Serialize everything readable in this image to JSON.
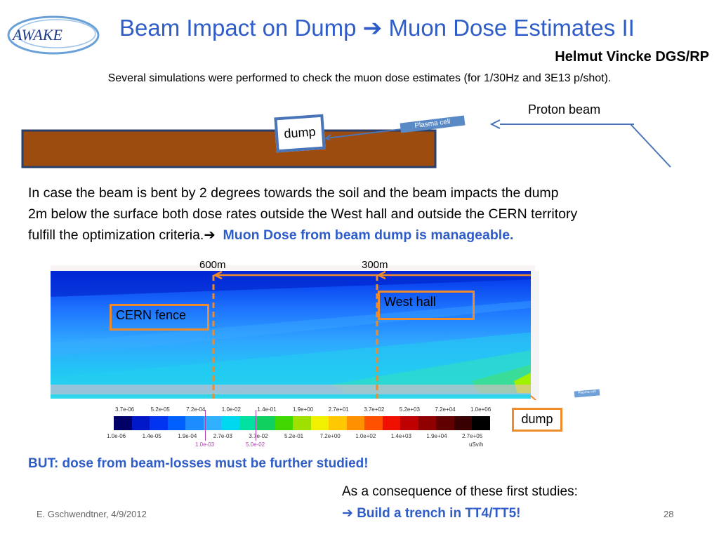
{
  "logo_text": "AWAKE",
  "title": {
    "part1": "Beam Impact on Dump ",
    "arrow": "➔",
    "part2": " Muon Dose Estimates II"
  },
  "author": "Helmut Vincke DGS/RP",
  "intro": "Several simulations were performed to check the muon dose estimates (for 1/30Hz and 3E13 p/shot).",
  "diagram": {
    "proton_beam": "Proton beam",
    "dump": "dump",
    "plasma_cell": "Plasma cell",
    "colors": {
      "soil": "#9b4c0e",
      "box_border": "#4a74b8",
      "beam": "#4a74b8"
    }
  },
  "paragraph": {
    "line1": "In case the beam is bent by 2 degrees towards the soil and the beam impacts the dump",
    "line2": "2m below the surface both dose rates outside the West hall and outside the CERN territory",
    "line3_a": "fulfill the optimization criteria.",
    "arrow": "➔",
    "highlight": "Muon Dose from beam dump is manageable",
    "period": "."
  },
  "plot": {
    "marker_600": "600m",
    "marker_300": "300m",
    "cern_fence": "CERN fence",
    "west_hall": "West hall",
    "dump": "dump",
    "plasma_cell": "Plasma cell",
    "accent": "#ef8b2b"
  },
  "colorbar": {
    "top_labels": [
      "3.7e-06",
      "5.2e-05",
      "7.2e-04",
      "1.0e-02",
      "1.4e-01",
      "1.9e+00",
      "2.7e+01",
      "3.7e+02",
      "5.2e+03",
      "7.2e+04",
      "1.0e+06"
    ],
    "bottom_labels": [
      "1.0e-06",
      "1.4e-05",
      "1.9e-04",
      "2.7e-03",
      "3.7e-02",
      "5.2e-01",
      "7.2e+00",
      "1.0e+02",
      "1.4e+03",
      "1.9e+04",
      "2.7e+05"
    ],
    "sub_labels": [
      "1.0e-03",
      "5.0e-02"
    ],
    "unit": "uSv/h",
    "colors": [
      "#000066",
      "#0018c8",
      "#0034f0",
      "#0060ff",
      "#1c8cff",
      "#30b0ff",
      "#00d8f0",
      "#00e0a0",
      "#10d060",
      "#40d800",
      "#a0e000",
      "#f0f000",
      "#ffc800",
      "#ff9000",
      "#ff5000",
      "#f01000",
      "#c00000",
      "#900000",
      "#600000",
      "#380000",
      "#000000"
    ]
  },
  "but_text": "BUT: dose from beam-losses must be further studied!",
  "consequence": "As a consequence of these first studies:",
  "build": {
    "arrow": "➔",
    "text": " Build a trench in TT4/TT5!"
  },
  "footer": "E. Gschwendtner, 4/9/2012",
  "page_number": "28"
}
